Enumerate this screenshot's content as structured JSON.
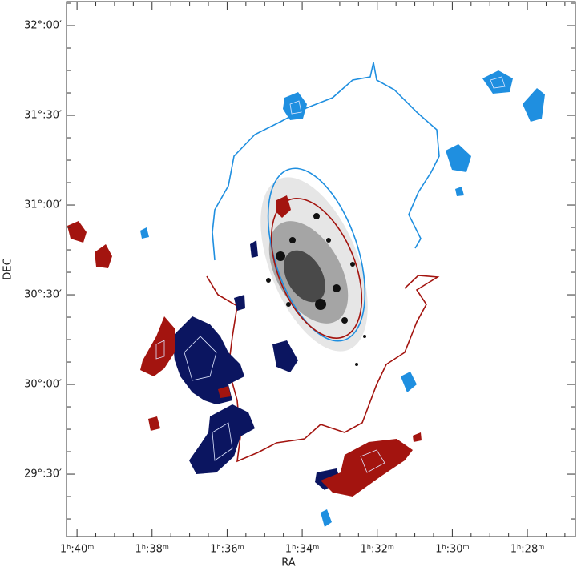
{
  "chart_data": {
    "type": "contour-map",
    "xlabel": "RA",
    "ylabel": "DEC",
    "xlim": [
      100.28,
      86.72
    ],
    "ylim": [
      29.152,
      32.134
    ],
    "xticks": [
      {
        "value": 100,
        "label": "1ʰ:40ᵐ"
      },
      {
        "value": 98,
        "label": "1ʰ:38ᵐ"
      },
      {
        "value": 96,
        "label": "1ʰ:36ᵐ"
      },
      {
        "value": 94,
        "label": "1ʰ:34ᵐ"
      },
      {
        "value": 92,
        "label": "1ʰ:32ᵐ"
      },
      {
        "value": 90,
        "label": "1ʰ:30ᵐ"
      },
      {
        "value": 88,
        "label": "1ʰ:28ᵐ"
      }
    ],
    "yticks": [
      {
        "value": 32,
        "label": "32°:00′"
      },
      {
        "value": 31.5,
        "label": "31°:30′"
      },
      {
        "value": 31,
        "label": "31°:00′"
      },
      {
        "value": 30.5,
        "label": "30°:30′"
      },
      {
        "value": 30,
        "label": "30°:00′"
      },
      {
        "value": 29.5,
        "label": "29°:30′"
      }
    ]
  }
}
